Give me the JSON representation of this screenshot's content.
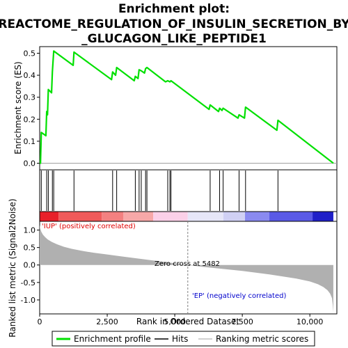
{
  "chart_data": {
    "type": "line",
    "title_line1": "Enrichment plot:",
    "title_line2": "REACTOME_REGULATION_OF_INSULIN_SECRETION_BY",
    "title_line3": "_GLUCAGON_LIKE_PEPTIDE1",
    "es_ylabel": "Enrichment score (ES)",
    "rank_ylabel": "Ranked list metric (Signal2Noise)",
    "xlabel": "Rank in Ordered Dataset",
    "xlim": [
      0,
      11000
    ],
    "es_ylim": [
      -0.03,
      0.53
    ],
    "rank_ylim": [
      -1.4,
      1.25
    ],
    "x_ticks": [
      0,
      2500,
      5000,
      7500,
      10000
    ],
    "x_tick_labels": [
      "0",
      "2,500",
      "5,000",
      "7,500",
      "10,000"
    ],
    "es_ticks": [
      0.0,
      0.1,
      0.2,
      0.3,
      0.4,
      0.5
    ],
    "es_tick_labels": [
      "0.0",
      "0.1",
      "0.2",
      "0.3",
      "0.4",
      "0.5"
    ],
    "rank_ticks": [
      1.0,
      0.5,
      0.0,
      -0.5,
      -1.0
    ],
    "rank_tick_labels": [
      "1.0",
      "0.5",
      "0.0",
      "-0.5",
      "-1.0"
    ],
    "grid": false,
    "legend_placement": "bottom",
    "n_genes": 10870,
    "zero_cross": 5482,
    "zero_cross_label": "Zero cross at 5482",
    "pos_label": "'IUP' (positively correlated)",
    "neg_label": "'EP' (negatively correlated)",
    "legend": [
      {
        "label": "Enrichment profile",
        "color": "#00e000",
        "kind": "line"
      },
      {
        "label": "Hits",
        "color": "#000000",
        "kind": "line"
      },
      {
        "label": "Ranking metric scores",
        "color": "#c0c0c0",
        "kind": "line"
      }
    ],
    "colors": {
      "profile": "#00e000",
      "hits": "#000000",
      "metric": "#b0b0b0",
      "zero_line": "#a0a0a0",
      "pos_text": "#e00000",
      "neg_text": "#0000cc"
    },
    "series": [
      {
        "name": "Enrichment profile",
        "x": [
          0,
          30,
          60,
          230,
          260,
          290,
          320,
          440,
          470,
          520,
          1240,
          1270,
          2660,
          2700,
          2810,
          2850,
          3500,
          3540,
          3640,
          3680,
          3760,
          3880,
          3920,
          3970,
          4660,
          4740,
          4820,
          4860,
          6270,
          6310,
          6620,
          6660,
          6750,
          6790,
          7340,
          7380,
          7580,
          7620,
          8780,
          8820,
          10870
        ],
        "y": [
          0.0,
          0.0,
          0.14,
          0.125,
          0.235,
          0.22,
          0.335,
          0.32,
          0.415,
          0.51,
          0.445,
          0.505,
          0.38,
          0.415,
          0.4,
          0.435,
          0.375,
          0.395,
          0.385,
          0.425,
          0.42,
          0.41,
          0.43,
          0.435,
          0.37,
          0.375,
          0.37,
          0.375,
          0.245,
          0.265,
          0.235,
          0.25,
          0.24,
          0.25,
          0.205,
          0.22,
          0.205,
          0.255,
          0.15,
          0.195,
          0.0
        ]
      }
    ],
    "hits": [
      60,
      260,
      320,
      470,
      520,
      1270,
      2700,
      2850,
      3540,
      3680,
      3760,
      3920,
      3970,
      4740,
      4820,
      4860,
      6310,
      6660,
      6790,
      7380,
      7620,
      8820
    ],
    "metric_profile": {
      "x": [
        0,
        20,
        60,
        120,
        200,
        300,
        450,
        650,
        900,
        1200,
        1600,
        2000,
        2500,
        3000,
        3500,
        4000,
        4500,
        5000,
        5482,
        6000,
        6500,
        7000,
        7500,
        8000,
        8500,
        9000,
        9500,
        10000,
        10300,
        10500,
        10650,
        10750,
        10820,
        10850,
        10870
      ],
      "y": [
        1.15,
        1.05,
        0.95,
        0.87,
        0.8,
        0.73,
        0.66,
        0.59,
        0.52,
        0.46,
        0.4,
        0.35,
        0.3,
        0.25,
        0.2,
        0.15,
        0.1,
        0.05,
        0.0,
        -0.05,
        -0.09,
        -0.13,
        -0.17,
        -0.22,
        -0.27,
        -0.33,
        -0.39,
        -0.47,
        -0.55,
        -0.63,
        -0.72,
        -0.82,
        -0.95,
        -1.15,
        -1.35
      ]
    },
    "color_bar": [
      {
        "x0": 0,
        "x1": 700,
        "color": "#e8202a"
      },
      {
        "x0": 700,
        "x1": 2300,
        "color": "#f05a5a"
      },
      {
        "x0": 2300,
        "x1": 3100,
        "color": "#f38080"
      },
      {
        "x0": 3100,
        "x1": 4200,
        "color": "#f7a8a8"
      },
      {
        "x0": 4200,
        "x1": 5482,
        "color": "#fbd0e8"
      },
      {
        "x0": 5482,
        "x1": 6800,
        "color": "#e6e6f8"
      },
      {
        "x0": 6800,
        "x1": 7600,
        "color": "#d0d0f4"
      },
      {
        "x0": 7600,
        "x1": 8500,
        "color": "#8a8af0"
      },
      {
        "x0": 8500,
        "x1": 10100,
        "color": "#5a5ae6"
      },
      {
        "x0": 10100,
        "x1": 10870,
        "color": "#2020c8"
      }
    ]
  }
}
